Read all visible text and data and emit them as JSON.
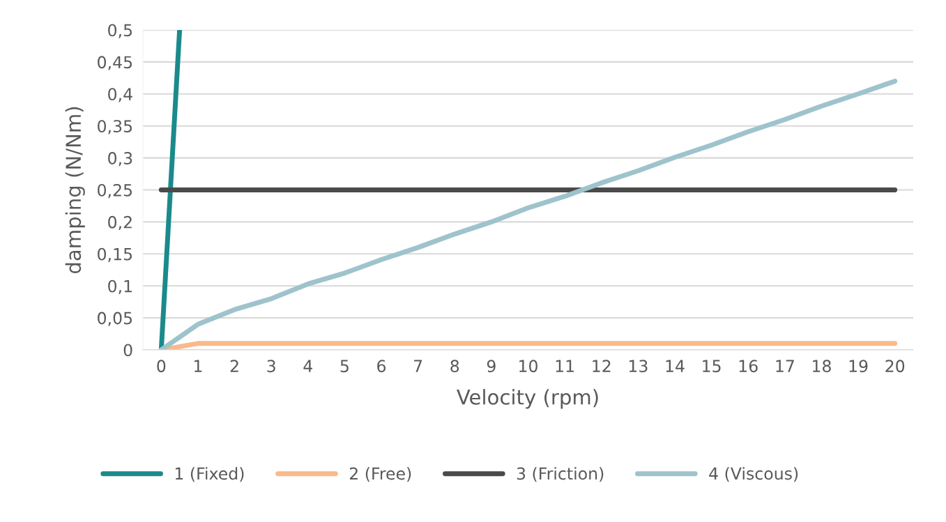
{
  "chart_data": {
    "type": "line",
    "xlabel": "Velocity (rpm)",
    "ylabel": "damping (N/Nm)",
    "x": [
      0,
      1,
      2,
      3,
      4,
      5,
      6,
      7,
      8,
      9,
      10,
      11,
      12,
      13,
      14,
      15,
      16,
      17,
      18,
      19,
      20
    ],
    "xlim": [
      -0.5,
      20.5
    ],
    "xticks": [
      0,
      1,
      2,
      3,
      4,
      5,
      6,
      7,
      8,
      9,
      10,
      11,
      12,
      13,
      14,
      15,
      16,
      17,
      18,
      19,
      20
    ],
    "ylim": [
      0,
      0.5
    ],
    "yticks": [
      {
        "value": 0,
        "label": "0"
      },
      {
        "value": 0.05,
        "label": "0,05"
      },
      {
        "value": 0.1,
        "label": "0,1"
      },
      {
        "value": 0.15,
        "label": "0,15"
      },
      {
        "value": 0.2,
        "label": "0,2"
      },
      {
        "value": 0.25,
        "label": "0,25"
      },
      {
        "value": 0.3,
        "label": "0,3"
      },
      {
        "value": 0.35,
        "label": "0,35"
      },
      {
        "value": 0.4,
        "label": "0,4"
      },
      {
        "value": 0.45,
        "label": "0,45"
      },
      {
        "value": 0.5,
        "label": "0,5"
      }
    ],
    "grid": "y",
    "legend": "bottom",
    "marker": "none",
    "line_style": "solid",
    "series": [
      {
        "name": "1 (Fixed)",
        "color": "#1a8a8c",
        "x": [
          0,
          0.5
        ],
        "values": [
          0,
          0.5
        ]
      },
      {
        "name": "2 (Free)",
        "color": "#f9b98a",
        "values": [
          0,
          0.01,
          0.01,
          0.01,
          0.01,
          0.01,
          0.01,
          0.01,
          0.01,
          0.01,
          0.01,
          0.01,
          0.01,
          0.01,
          0.01,
          0.01,
          0.01,
          0.01,
          0.01,
          0.01,
          0.01
        ]
      },
      {
        "name": "3 (Friction)",
        "color": "#4a4a4a",
        "values": [
          0.25,
          0.25,
          0.25,
          0.25,
          0.25,
          0.25,
          0.25,
          0.25,
          0.25,
          0.25,
          0.25,
          0.25,
          0.25,
          0.25,
          0.25,
          0.25,
          0.25,
          0.25,
          0.25,
          0.25,
          0.25
        ]
      },
      {
        "name": "4 (Viscous)",
        "color": "#9ec3cc",
        "values": [
          0,
          0.04,
          0.063,
          0.08,
          0.103,
          0.12,
          0.141,
          0.16,
          0.181,
          0.2,
          0.222,
          0.24,
          0.261,
          0.28,
          0.301,
          0.32,
          0.341,
          0.36,
          0.381,
          0.4,
          0.42
        ]
      }
    ]
  }
}
